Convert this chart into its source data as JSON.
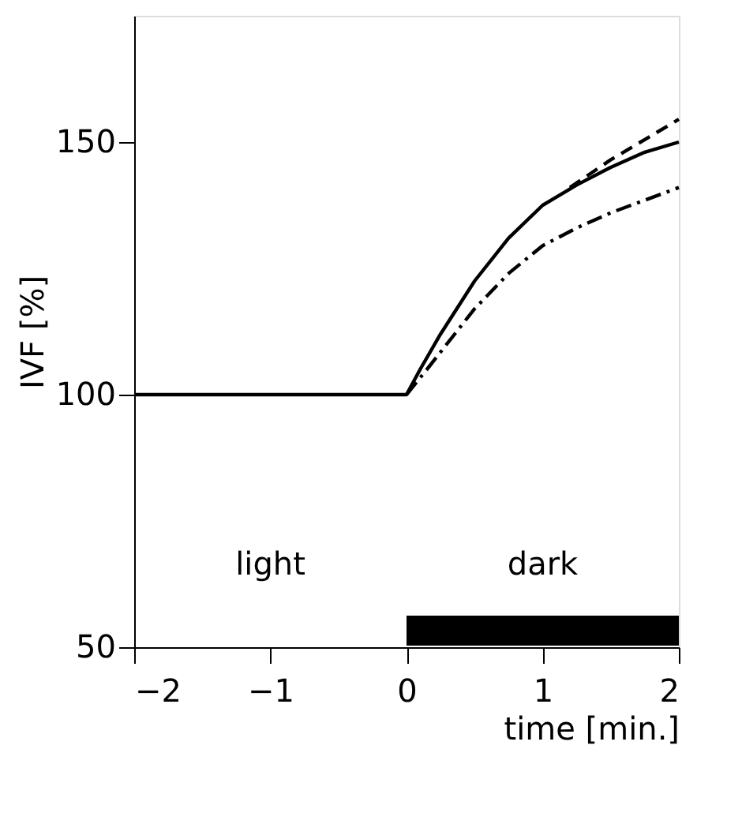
{
  "chart_data": {
    "type": "line",
    "xlabel": "time [min.]",
    "ylabel": "IVF [%]",
    "xlim": [
      -2,
      2
    ],
    "xticks": [
      -2,
      -1,
      0,
      1,
      2
    ],
    "ylim": [
      50,
      175
    ],
    "yticks": [
      50,
      100,
      150
    ],
    "grid": false,
    "marker": "none",
    "series": [
      {
        "color": "#000000",
        "line_style": "solid",
        "x": [
          -2,
          0,
          0.1,
          0.25,
          0.5,
          0.75,
          1,
          1.25,
          1.5,
          1.75,
          2
        ],
        "values": [
          100,
          100,
          105,
          112,
          122.5,
          131,
          137.5,
          141.5,
          145,
          148,
          150
        ]
      },
      {
        "color": "#000000",
        "line_style": "dashed",
        "x": [
          1.2,
          1.5,
          1.75,
          2
        ],
        "values": [
          141,
          146.5,
          150.5,
          154.5
        ]
      },
      {
        "color": "#000000",
        "line_style": "dashdot",
        "x": [
          0,
          0.15,
          0.5,
          0.75,
          1,
          1.25,
          1.5,
          1.75,
          2
        ],
        "values": [
          100,
          105,
          117,
          124,
          129.5,
          133,
          136,
          138.5,
          141
        ]
      }
    ],
    "annotations": [
      "light"
    ],
    "bands": [
      {
        "axis": "x",
        "from": 0,
        "to": 2,
        "label": "dark",
        "color": "#000000"
      }
    ]
  }
}
